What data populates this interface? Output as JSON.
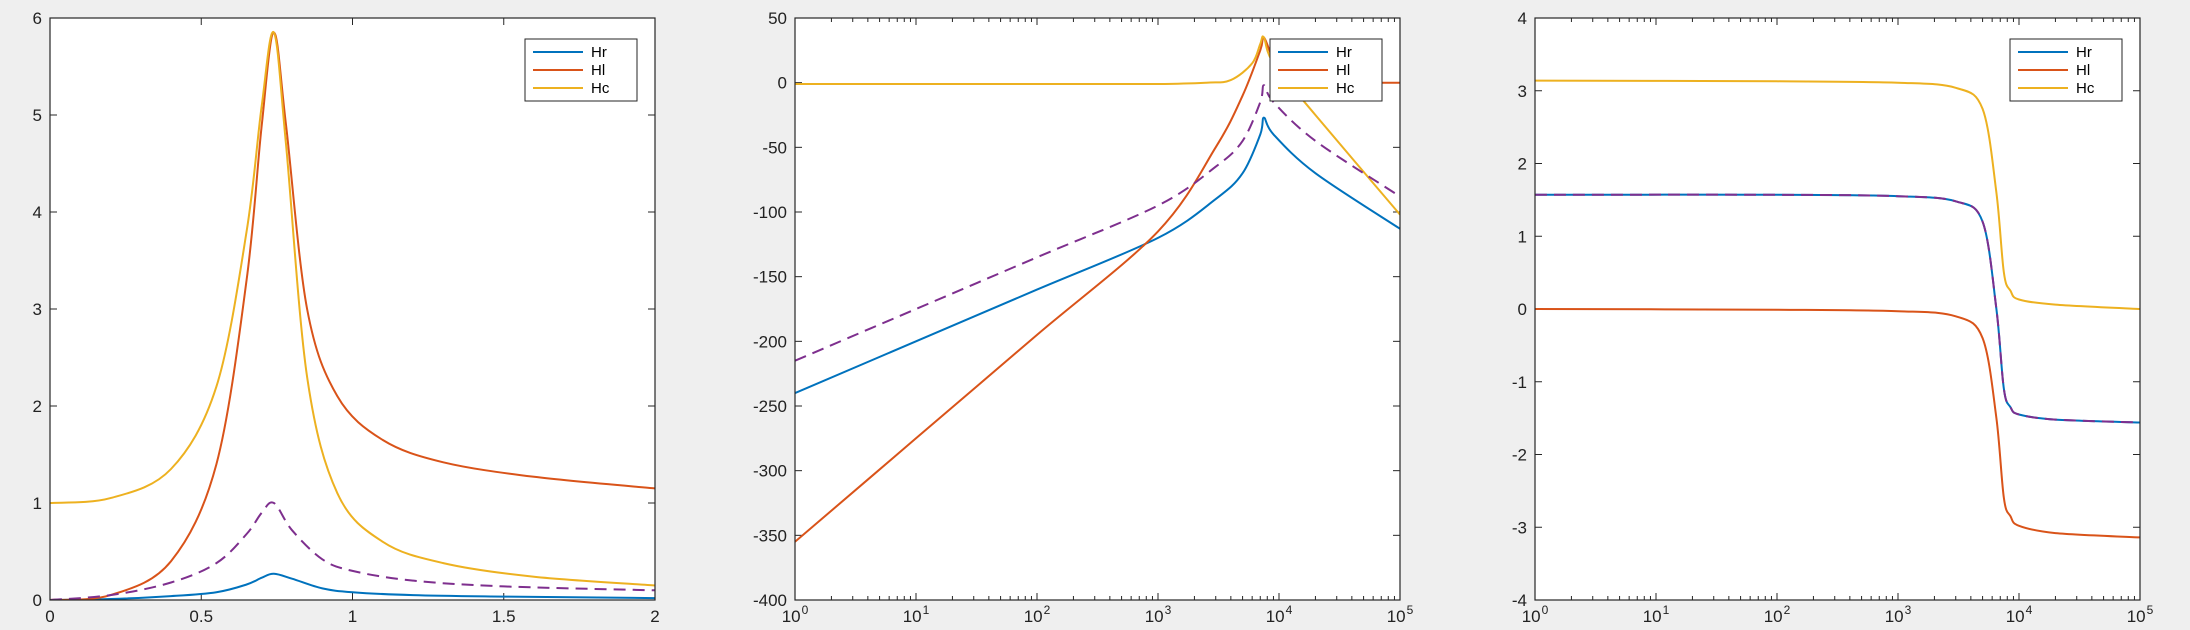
{
  "figure": {
    "background": "#efefef",
    "axes_background": "#ffffff"
  },
  "chart_data": [
    {
      "type": "line",
      "xscale": "linear",
      "xlim": [
        0,
        2
      ],
      "ylim": [
        0,
        6
      ],
      "xticks": [
        0,
        0.5,
        1,
        1.5,
        2
      ],
      "xtick_labels": [
        "0",
        "0.5",
        "1",
        "1.5",
        "2"
      ],
      "yticks": [
        0,
        1,
        2,
        3,
        4,
        5,
        6
      ],
      "ytick_labels": [
        "0",
        "1",
        "2",
        "3",
        "4",
        "5",
        "6"
      ],
      "legend": {
        "position": "top-right",
        "entries": [
          "Hr",
          "Hl",
          "Hc"
        ]
      },
      "series": [
        {
          "name": "Hr",
          "color": "#0072bd",
          "style": "solid",
          "x": [
            0,
            0.2,
            0.4,
            0.55,
            0.65,
            0.7,
            0.74,
            0.8,
            0.9,
            1.0,
            1.2,
            1.5,
            2.0
          ],
          "y": [
            0,
            0.01,
            0.04,
            0.08,
            0.16,
            0.23,
            0.27,
            0.22,
            0.12,
            0.08,
            0.05,
            0.035,
            0.02
          ]
        },
        {
          "name": "Hl",
          "color": "#d95319",
          "style": "solid",
          "x": [
            0,
            0.2,
            0.4,
            0.55,
            0.65,
            0.7,
            0.74,
            0.78,
            0.85,
            0.95,
            1.1,
            1.3,
            1.6,
            2.0
          ],
          "y": [
            0,
            0.05,
            0.4,
            1.4,
            3.3,
            4.9,
            5.85,
            4.9,
            3.0,
            2.1,
            1.65,
            1.42,
            1.27,
            1.15
          ]
        },
        {
          "name": "Hc",
          "color": "#edb120",
          "style": "solid",
          "x": [
            0,
            0.2,
            0.4,
            0.55,
            0.65,
            0.7,
            0.74,
            0.78,
            0.85,
            0.95,
            1.1,
            1.3,
            1.6,
            2.0
          ],
          "y": [
            1.0,
            1.05,
            1.35,
            2.2,
            3.8,
            5.1,
            5.85,
            4.7,
            2.3,
            1.1,
            0.6,
            0.38,
            0.24,
            0.15
          ]
        },
        {
          "name": "",
          "color": "#7e2f8e",
          "style": "dashed",
          "x": [
            0,
            0.2,
            0.4,
            0.55,
            0.65,
            0.7,
            0.74,
            0.8,
            0.9,
            1.0,
            1.2,
            1.5,
            2.0
          ],
          "y": [
            0,
            0.05,
            0.18,
            0.38,
            0.68,
            0.9,
            1.0,
            0.72,
            0.42,
            0.3,
            0.2,
            0.14,
            0.1
          ]
        }
      ]
    },
    {
      "type": "line",
      "xscale": "log",
      "xlim": [
        1,
        100000
      ],
      "ylim": [
        -400,
        50
      ],
      "xticks": [
        1,
        10,
        100,
        1000,
        10000,
        100000
      ],
      "xtick_labels": [
        "10",
        "10",
        "10",
        "10",
        "10",
        "10"
      ],
      "xtick_exponents": [
        "0",
        "1",
        "2",
        "3",
        "4",
        "5"
      ],
      "yticks": [
        -400,
        -350,
        -300,
        -250,
        -200,
        -150,
        -100,
        -50,
        0,
        50
      ],
      "ytick_labels": [
        "-400",
        "-350",
        "-300",
        "-250",
        "-200",
        "-150",
        "-100",
        "-50",
        "0",
        "50"
      ],
      "legend": {
        "position": "top-right",
        "entries": [
          "Hr",
          "Hl",
          "Hc"
        ]
      },
      "series": [
        {
          "name": "Hr",
          "color": "#0072bd",
          "style": "solid",
          "x": [
            1,
            10,
            100,
            1000,
            3000,
            5000,
            7000,
            7500,
            9000,
            20000,
            100000
          ],
          "y": [
            -240,
            -200,
            -160,
            -120,
            -90,
            -70,
            -40,
            -27,
            -40,
            -70,
            -113
          ]
        },
        {
          "name": "Hl",
          "color": "#d95319",
          "style": "solid",
          "x": [
            1,
            10,
            100,
            1000,
            3000,
            5000,
            7000,
            7500,
            9000,
            12000,
            15000,
            100000
          ],
          "y": [
            -355,
            -275,
            -195,
            -115,
            -50,
            -10,
            25,
            35,
            18,
            2,
            0,
            0
          ]
        },
        {
          "name": "Hc",
          "color": "#edb120",
          "style": "solid",
          "x": [
            1,
            100,
            1000,
            2500,
            4000,
            6000,
            7000,
            7500,
            9000,
            20000,
            100000
          ],
          "y": [
            -1,
            -1,
            -1,
            0,
            2,
            15,
            30,
            35,
            15,
            -25,
            -102
          ]
        },
        {
          "name": "",
          "color": "#7e2f8e",
          "style": "dashed",
          "x": [
            1,
            10,
            100,
            1000,
            3000,
            5000,
            7000,
            7500,
            9000,
            20000,
            100000
          ],
          "y": [
            -215,
            -175,
            -135,
            -95,
            -65,
            -45,
            -15,
            -2,
            -15,
            -45,
            -88
          ]
        }
      ]
    },
    {
      "type": "line",
      "xscale": "log",
      "xlim": [
        1,
        100000
      ],
      "ylim": [
        -4,
        4
      ],
      "xticks": [
        1,
        10,
        100,
        1000,
        10000,
        100000
      ],
      "xtick_labels": [
        "10",
        "10",
        "10",
        "10",
        "10",
        "10"
      ],
      "xtick_exponents": [
        "0",
        "1",
        "2",
        "3",
        "4",
        "5"
      ],
      "yticks": [
        -4,
        -3,
        -2,
        -1,
        0,
        1,
        2,
        3,
        4
      ],
      "ytick_labels": [
        "-4",
        "-3",
        "-2",
        "-1",
        "0",
        "1",
        "2",
        "3",
        "4"
      ],
      "legend": {
        "position": "top-right",
        "entries": [
          "Hr",
          "Hl",
          "Hc"
        ]
      },
      "series": [
        {
          "name": "Hr",
          "color": "#0072bd",
          "style": "solid",
          "x": [
            1,
            100,
            1000,
            3000,
            5000,
            6500,
            7500,
            8500,
            10000,
            20000,
            100000
          ],
          "y": [
            1.57,
            1.57,
            1.55,
            1.48,
            1.2,
            0.0,
            -1.1,
            -1.35,
            -1.45,
            -1.52,
            -1.56
          ]
        },
        {
          "name": "Hl",
          "color": "#d95319",
          "style": "solid",
          "x": [
            1,
            100,
            1000,
            3000,
            5000,
            6500,
            7500,
            8500,
            10000,
            20000,
            100000
          ],
          "y": [
            0,
            -0.01,
            -0.03,
            -0.1,
            -0.4,
            -1.5,
            -2.6,
            -2.85,
            -2.98,
            -3.08,
            -3.14
          ]
        },
        {
          "name": "Hc",
          "color": "#edb120",
          "style": "solid",
          "x": [
            1,
            100,
            1000,
            3000,
            5000,
            6500,
            7500,
            8500,
            10000,
            20000,
            100000
          ],
          "y": [
            3.14,
            3.13,
            3.11,
            3.04,
            2.75,
            1.6,
            0.5,
            0.25,
            0.13,
            0.06,
            0.0
          ]
        },
        {
          "name": "",
          "color": "#7e2f8e",
          "style": "dashed",
          "x": [
            1,
            100,
            1000,
            3000,
            5000,
            6500,
            7500,
            8500,
            10000,
            20000,
            100000
          ],
          "y": [
            1.57,
            1.57,
            1.55,
            1.48,
            1.2,
            0.0,
            -1.1,
            -1.35,
            -1.45,
            -1.52,
            -1.56
          ]
        }
      ]
    }
  ]
}
